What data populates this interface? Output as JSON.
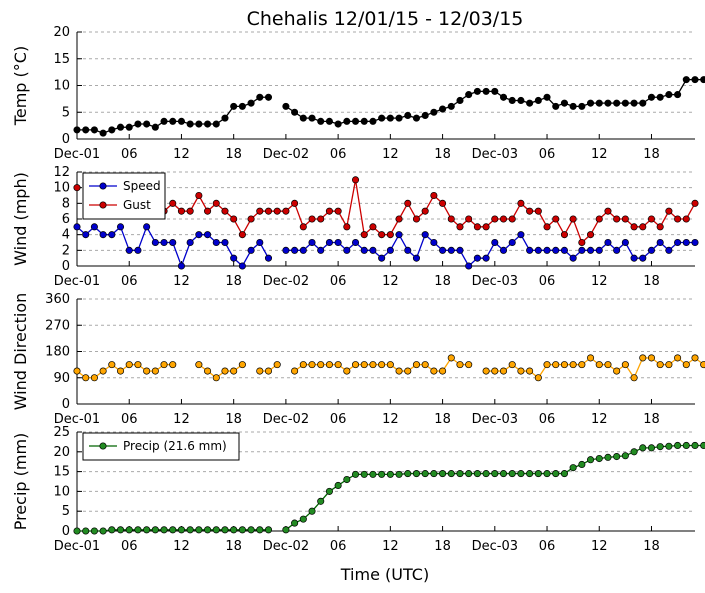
{
  "title": "Chehalis 12/01/15 - 12/03/15",
  "xlabel": "Time (UTC)",
  "x_tick_labels": [
    "Dec-01",
    "06",
    "12",
    "18",
    "Dec-02",
    "06",
    "12",
    "18",
    "Dec-03",
    "06",
    "12",
    "18"
  ],
  "x_tick_hours": [
    0,
    6,
    12,
    18,
    24,
    30,
    36,
    42,
    48,
    54,
    60,
    66
  ],
  "x_range_hours": [
    0,
    71
  ],
  "colors": {
    "temp": "#000000",
    "speed": "#0000cc",
    "gust": "#cc0000",
    "direction_line": "#ffa500",
    "direction_marker": "#ffa500",
    "precip_line": "#006400",
    "precip_marker": "#228b22",
    "grid": "#aaaaaa"
  },
  "chart_data": [
    {
      "type": "line",
      "ylabel": "Temp (°C)",
      "ylim": [
        0,
        20
      ],
      "yticks": [
        0,
        5,
        10,
        15,
        20
      ],
      "grid": "horizontal dashed",
      "series": [
        {
          "values": [
            1.7,
            1.7,
            1.7,
            1.1,
            1.7,
            2.2,
            2.2,
            2.8,
            2.8,
            2.2,
            3.3,
            3.3,
            3.3,
            2.8,
            2.8,
            2.8,
            2.8,
            3.9,
            6.1,
            6.1,
            6.7,
            7.8,
            7.8,
            null,
            6.1,
            5.0,
            3.9,
            3.9,
            3.3,
            3.3,
            2.8,
            3.3,
            3.3,
            3.3,
            3.3,
            3.9,
            3.9,
            3.9,
            4.4,
            3.9,
            4.4,
            5.0,
            5.6,
            6.1,
            7.2,
            8.3,
            8.9,
            8.9,
            8.9,
            7.8,
            7.2,
            7.2,
            6.7,
            7.2,
            7.8,
            6.1,
            6.7,
            6.1,
            6.1,
            6.7,
            6.7,
            6.7,
            6.7,
            6.7,
            6.7,
            6.7,
            7.8,
            7.8,
            8.3,
            8.3,
            11.1,
            11.1,
            11.1
          ]
        }
      ]
    },
    {
      "type": "line",
      "ylabel": "Wind (mph)",
      "ylim": [
        0,
        12
      ],
      "yticks": [
        0,
        2,
        4,
        6,
        8,
        10,
        12
      ],
      "grid": "horizontal dashed",
      "legend": "top-left",
      "series": [
        {
          "name": "Speed",
          "values": [
            5,
            4,
            5,
            4,
            4,
            5,
            2,
            2,
            5,
            3,
            3,
            3,
            0,
            3,
            4,
            4,
            3,
            3,
            1,
            0,
            2,
            3,
            1,
            null,
            2,
            2,
            2,
            3,
            2,
            3,
            3,
            2,
            3,
            2,
            2,
            1,
            2,
            4,
            2,
            1,
            4,
            3,
            2,
            2,
            2,
            0,
            1,
            1,
            3,
            2,
            3,
            4,
            2,
            2,
            2,
            2,
            2,
            1,
            2,
            2,
            2,
            3,
            2,
            3,
            1,
            1,
            2,
            3,
            2,
            3,
            3,
            3
          ]
        },
        {
          "name": "Gust",
          "values": [
            10,
            null,
            7,
            null,
            7,
            7,
            null,
            null,
            7,
            7,
            7,
            8,
            7,
            7,
            9,
            7,
            8,
            7,
            6,
            4,
            6,
            7,
            7,
            7,
            7,
            8,
            5,
            6,
            6,
            7,
            7,
            5,
            11,
            4,
            5,
            4,
            4,
            6,
            8,
            6,
            7,
            9,
            8,
            6,
            5,
            6,
            5,
            5,
            6,
            6,
            6,
            8,
            7,
            7,
            5,
            6,
            4,
            6,
            3,
            4,
            6,
            7,
            6,
            6,
            5,
            5,
            6,
            5,
            7,
            6,
            6,
            8
          ]
        }
      ]
    },
    {
      "type": "line",
      "ylabel": "Wind Direction",
      "ylim": [
        0,
        360
      ],
      "yticks": [
        0,
        90,
        180,
        270,
        360
      ],
      "grid": "horizontal dashed",
      "series": [
        {
          "values": [
            113,
            90,
            90,
            113,
            135,
            113,
            135,
            135,
            113,
            113,
            135,
            135,
            null,
            null,
            135,
            113,
            90,
            113,
            113,
            135,
            null,
            113,
            113,
            135,
            null,
            113,
            135,
            135,
            135,
            135,
            135,
            113,
            135,
            135,
            135,
            135,
            135,
            113,
            113,
            135,
            135,
            113,
            113,
            158,
            135,
            135,
            null,
            113,
            113,
            113,
            135,
            113,
            113,
            90,
            135,
            135,
            135,
            135,
            135,
            158,
            135,
            135,
            113,
            135,
            90,
            158,
            158,
            135,
            135,
            158,
            135,
            158,
            135
          ]
        }
      ]
    },
    {
      "type": "line",
      "ylabel": "Precip (mm)",
      "ylim": [
        0,
        25
      ],
      "yticks": [
        0,
        5,
        10,
        15,
        20,
        25
      ],
      "grid": "horizontal dashed",
      "legend": "top-left",
      "series": [
        {
          "name": "Precip (21.6 mm)",
          "values": [
            0,
            0,
            0,
            0,
            0.3,
            0.3,
            0.3,
            0.3,
            0.3,
            0.3,
            0.3,
            0.3,
            0.3,
            0.3,
            0.3,
            0.3,
            0.3,
            0.3,
            0.3,
            0.3,
            0.3,
            0.3,
            0.3,
            null,
            0.3,
            2.0,
            3.0,
            5.0,
            7.5,
            10.0,
            11.5,
            13.0,
            14.3,
            14.3,
            14.3,
            14.3,
            14.3,
            14.3,
            14.5,
            14.5,
            14.5,
            14.5,
            14.5,
            14.5,
            14.5,
            14.5,
            14.5,
            14.5,
            14.5,
            14.5,
            14.5,
            14.5,
            14.5,
            14.5,
            14.5,
            14.5,
            14.5,
            16.0,
            16.8,
            18.0,
            18.3,
            18.6,
            18.8,
            19.0,
            20.0,
            21.0,
            21.0,
            21.3,
            21.4,
            21.6,
            21.6,
            21.6,
            21.6
          ]
        }
      ]
    }
  ]
}
